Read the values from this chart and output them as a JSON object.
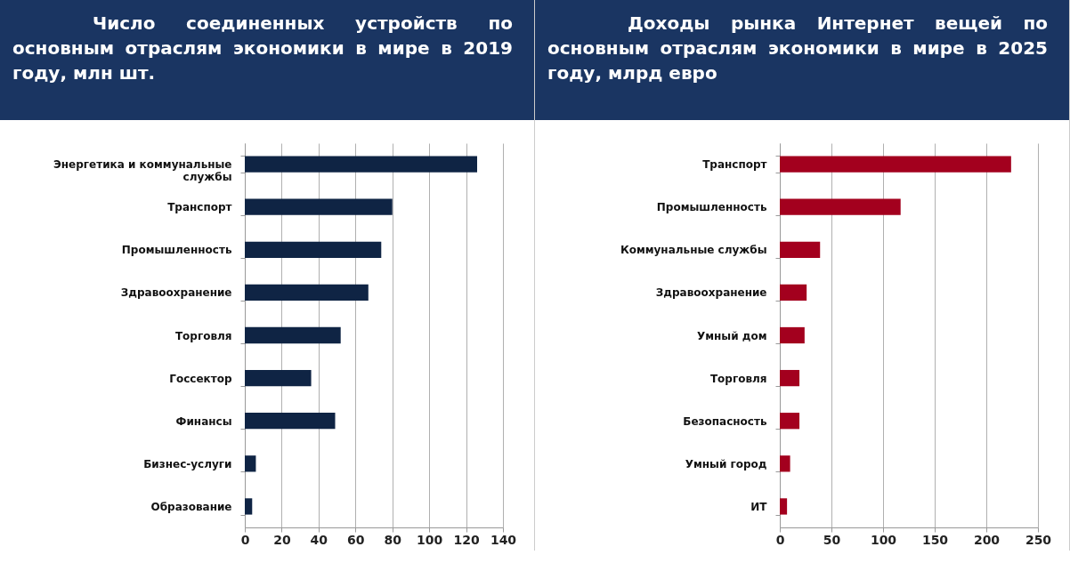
{
  "chart_data": [
    {
      "type": "bar",
      "orientation": "horizontal",
      "title": "Число соединенных устройств по основным отраслям экономики в мире в 2019 году, млн шт.",
      "categories": [
        "Энергетика и коммунальные службы",
        "Транспорт",
        "Промышленность",
        "Здравоохранение",
        "Торговля",
        "Госсектор",
        "Финансы",
        "Бизнес-услуги",
        "Образование"
      ],
      "values": [
        126,
        80,
        74,
        67,
        52,
        36,
        49,
        6,
        4
      ],
      "color": "#0f2444",
      "xlim": [
        0,
        140
      ],
      "xticks": [
        0,
        20,
        40,
        60,
        80,
        100,
        120,
        140
      ],
      "grid": "x"
    },
    {
      "type": "bar",
      "orientation": "horizontal",
      "title": "Доходы рынка Интернет вещей по основным отраслям экономики в мире в 2025 году, млрд евро",
      "categories": [
        "Транспорт",
        "Промышленность",
        "Коммунальные службы",
        "Здравоохранение",
        "Умный дом",
        "Торговля",
        "Безопасность",
        "Умный город",
        "ИТ"
      ],
      "values": [
        224,
        117,
        39,
        26,
        24,
        19,
        19,
        10,
        7
      ],
      "color": "#a3001e",
      "xlim": [
        0,
        250
      ],
      "xticks": [
        0,
        50,
        100,
        150,
        200,
        250
      ],
      "grid": "x"
    }
  ]
}
